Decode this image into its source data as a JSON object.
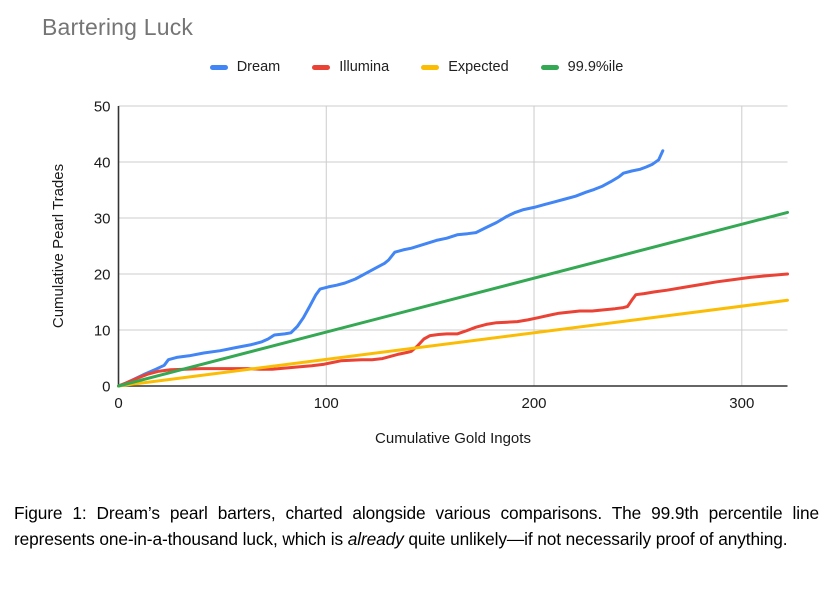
{
  "title": "Bartering Luck",
  "caption": {
    "prefix": "Figure 1: Dream’s pearl barters, charted alongside various comparisons. The 99.9th percentile line represents one-in-a-thousand luck, which is ",
    "italic_word": "already",
    "suffix": " quite unlikely—if not necessarily proof of anything."
  },
  "colors": {
    "grid": "#cccccc",
    "axis": "#333333",
    "title_gray": "#757575"
  },
  "chart_data": {
    "type": "line",
    "title": "Bartering Luck",
    "xlabel": "Cumulative Gold Ingots",
    "ylabel": "Cumulative Pearl Trades",
    "xlim": [
      0,
      322
    ],
    "ylim": [
      0,
      50
    ],
    "x_ticks": [
      0,
      100,
      200,
      300
    ],
    "y_ticks": [
      0,
      10,
      20,
      30,
      40,
      50
    ],
    "grid": true,
    "legend_position": "top",
    "series": [
      {
        "name": "Dream",
        "color": "#4285F4",
        "points": [
          [
            0,
            0
          ],
          [
            3,
            0.4
          ],
          [
            8,
            1.3
          ],
          [
            13,
            2.2
          ],
          [
            18,
            3
          ],
          [
            22,
            3.7
          ],
          [
            24,
            4.7
          ],
          [
            28,
            5.1
          ],
          [
            34,
            5.4
          ],
          [
            41,
            5.9
          ],
          [
            49,
            6.3
          ],
          [
            57,
            6.9
          ],
          [
            64,
            7.4
          ],
          [
            69,
            7.9
          ],
          [
            72,
            8.4
          ],
          [
            75,
            9.1
          ],
          [
            80,
            9.3
          ],
          [
            83,
            9.5
          ],
          [
            86,
            10.6
          ],
          [
            89,
            12.2
          ],
          [
            92,
            14.2
          ],
          [
            95,
            16.3
          ],
          [
            97,
            17.3
          ],
          [
            101,
            17.7
          ],
          [
            105,
            18
          ],
          [
            109,
            18.4
          ],
          [
            114,
            19.1
          ],
          [
            119,
            20.1
          ],
          [
            124,
            21.1
          ],
          [
            128,
            21.9
          ],
          [
            130,
            22.5
          ],
          [
            133,
            23.9
          ],
          [
            137,
            24.3
          ],
          [
            141,
            24.6
          ],
          [
            147,
            25.3
          ],
          [
            153,
            26
          ],
          [
            158,
            26.4
          ],
          [
            163,
            27
          ],
          [
            168,
            27.2
          ],
          [
            172,
            27.4
          ],
          [
            177,
            28.3
          ],
          [
            182,
            29.2
          ],
          [
            187,
            30.3
          ],
          [
            191,
            31
          ],
          [
            195,
            31.5
          ],
          [
            200,
            31.9
          ],
          [
            205,
            32.4
          ],
          [
            210,
            32.9
          ],
          [
            215,
            33.4
          ],
          [
            220,
            33.9
          ],
          [
            225,
            34.6
          ],
          [
            229,
            35.1
          ],
          [
            233,
            35.7
          ],
          [
            237,
            36.5
          ],
          [
            241,
            37.4
          ],
          [
            243,
            38
          ],
          [
            247,
            38.4
          ],
          [
            251,
            38.7
          ],
          [
            254,
            39.1
          ],
          [
            257,
            39.6
          ],
          [
            260,
            40.4
          ],
          [
            262,
            42
          ]
        ]
      },
      {
        "name": "Illumina",
        "color": "#EA4335",
        "points": [
          [
            0,
            0
          ],
          [
            4,
            0.6
          ],
          [
            9,
            1.4
          ],
          [
            14,
            2.1
          ],
          [
            19,
            2.6
          ],
          [
            25,
            2.9
          ],
          [
            32,
            3
          ],
          [
            40,
            3.1
          ],
          [
            48,
            3.1
          ],
          [
            56,
            3.1
          ],
          [
            62,
            3.1
          ],
          [
            68,
            3
          ],
          [
            74,
            3
          ],
          [
            80,
            3.2
          ],
          [
            86,
            3.4
          ],
          [
            93,
            3.6
          ],
          [
            99,
            3.9
          ],
          [
            103,
            4.2
          ],
          [
            107,
            4.5
          ],
          [
            112,
            4.6
          ],
          [
            117,
            4.7
          ],
          [
            122,
            4.7
          ],
          [
            127,
            4.9
          ],
          [
            131,
            5.3
          ],
          [
            135,
            5.7
          ],
          [
            139,
            6
          ],
          [
            141,
            6.2
          ],
          [
            144,
            7.2
          ],
          [
            147,
            8.4
          ],
          [
            150,
            9
          ],
          [
            154,
            9.2
          ],
          [
            158,
            9.3
          ],
          [
            163,
            9.3
          ],
          [
            167,
            9.8
          ],
          [
            172,
            10.5
          ],
          [
            177,
            11
          ],
          [
            182,
            11.3
          ],
          [
            187,
            11.4
          ],
          [
            192,
            11.5
          ],
          [
            197,
            11.8
          ],
          [
            202,
            12.2
          ],
          [
            207,
            12.6
          ],
          [
            212,
            13
          ],
          [
            217,
            13.2
          ],
          [
            222,
            13.4
          ],
          [
            228,
            13.4
          ],
          [
            234,
            13.6
          ],
          [
            239,
            13.8
          ],
          [
            243,
            14
          ],
          [
            245,
            14.2
          ],
          [
            247,
            15.3
          ],
          [
            249,
            16.3
          ],
          [
            253,
            16.5
          ],
          [
            258,
            16.8
          ],
          [
            264,
            17.1
          ],
          [
            272,
            17.6
          ],
          [
            280,
            18.1
          ],
          [
            288,
            18.6
          ],
          [
            296,
            19
          ],
          [
            304,
            19.4
          ],
          [
            312,
            19.7
          ],
          [
            322,
            20
          ]
        ]
      },
      {
        "name": "Expected",
        "color": "#FBBC04",
        "points": [
          [
            0,
            0
          ],
          [
            322,
            15.3
          ]
        ]
      },
      {
        "name": "99.9%ile",
        "color": "#34A853",
        "points": [
          [
            0,
            0
          ],
          [
            322,
            31
          ]
        ]
      }
    ]
  }
}
